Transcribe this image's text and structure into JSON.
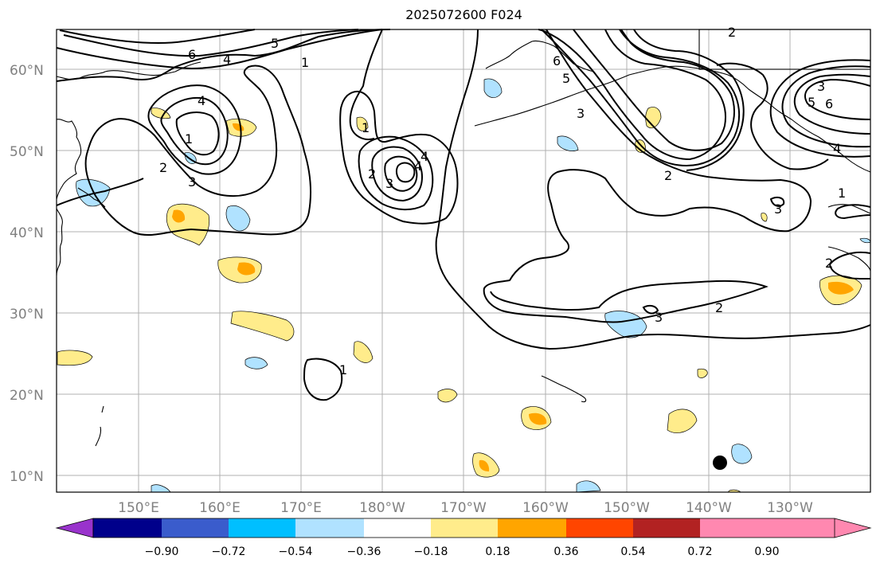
{
  "title": "2025072600 F024",
  "lat_labels": [
    "60°N",
    "50°N",
    "40°N",
    "30°N",
    "20°N",
    "10°N"
  ],
  "lon_labels": [
    "150°E",
    "160°E",
    "170°E",
    "180°W",
    "170°W",
    "160°W",
    "150°W",
    "140°W",
    "130°W"
  ],
  "colorbar": {
    "colors": [
      "#9933cc",
      "#00008b",
      "#3a5ccc",
      "#00bfff",
      "#b0e2ff",
      "#ffffff",
      "#ffec8b",
      "#ffa500",
      "#ff4500",
      "#b22222",
      "#ff88b0"
    ],
    "tick_labels": [
      "−0.90",
      "−0.72",
      "−0.54",
      "−0.36",
      "−0.18",
      "0.18",
      "0.36",
      "0.54",
      "0.72",
      "0.90"
    ]
  },
  "contour_labels": [
    "6",
    "4",
    "5",
    "1",
    "4",
    "1",
    "2",
    "3",
    "2",
    "3",
    "4",
    "4",
    "1",
    "6",
    "5",
    "2",
    "2",
    "3",
    "3",
    "6",
    "5",
    "3",
    "4",
    "1",
    "2",
    "3",
    "2",
    "1"
  ],
  "colors": {
    "positive_light": "#ffec8b",
    "positive_mid": "#ffa500",
    "negative_light": "#b0e2ff",
    "negative_mid": "#00bfff",
    "contour": "#000000",
    "grid": "#a9a9a9"
  }
}
